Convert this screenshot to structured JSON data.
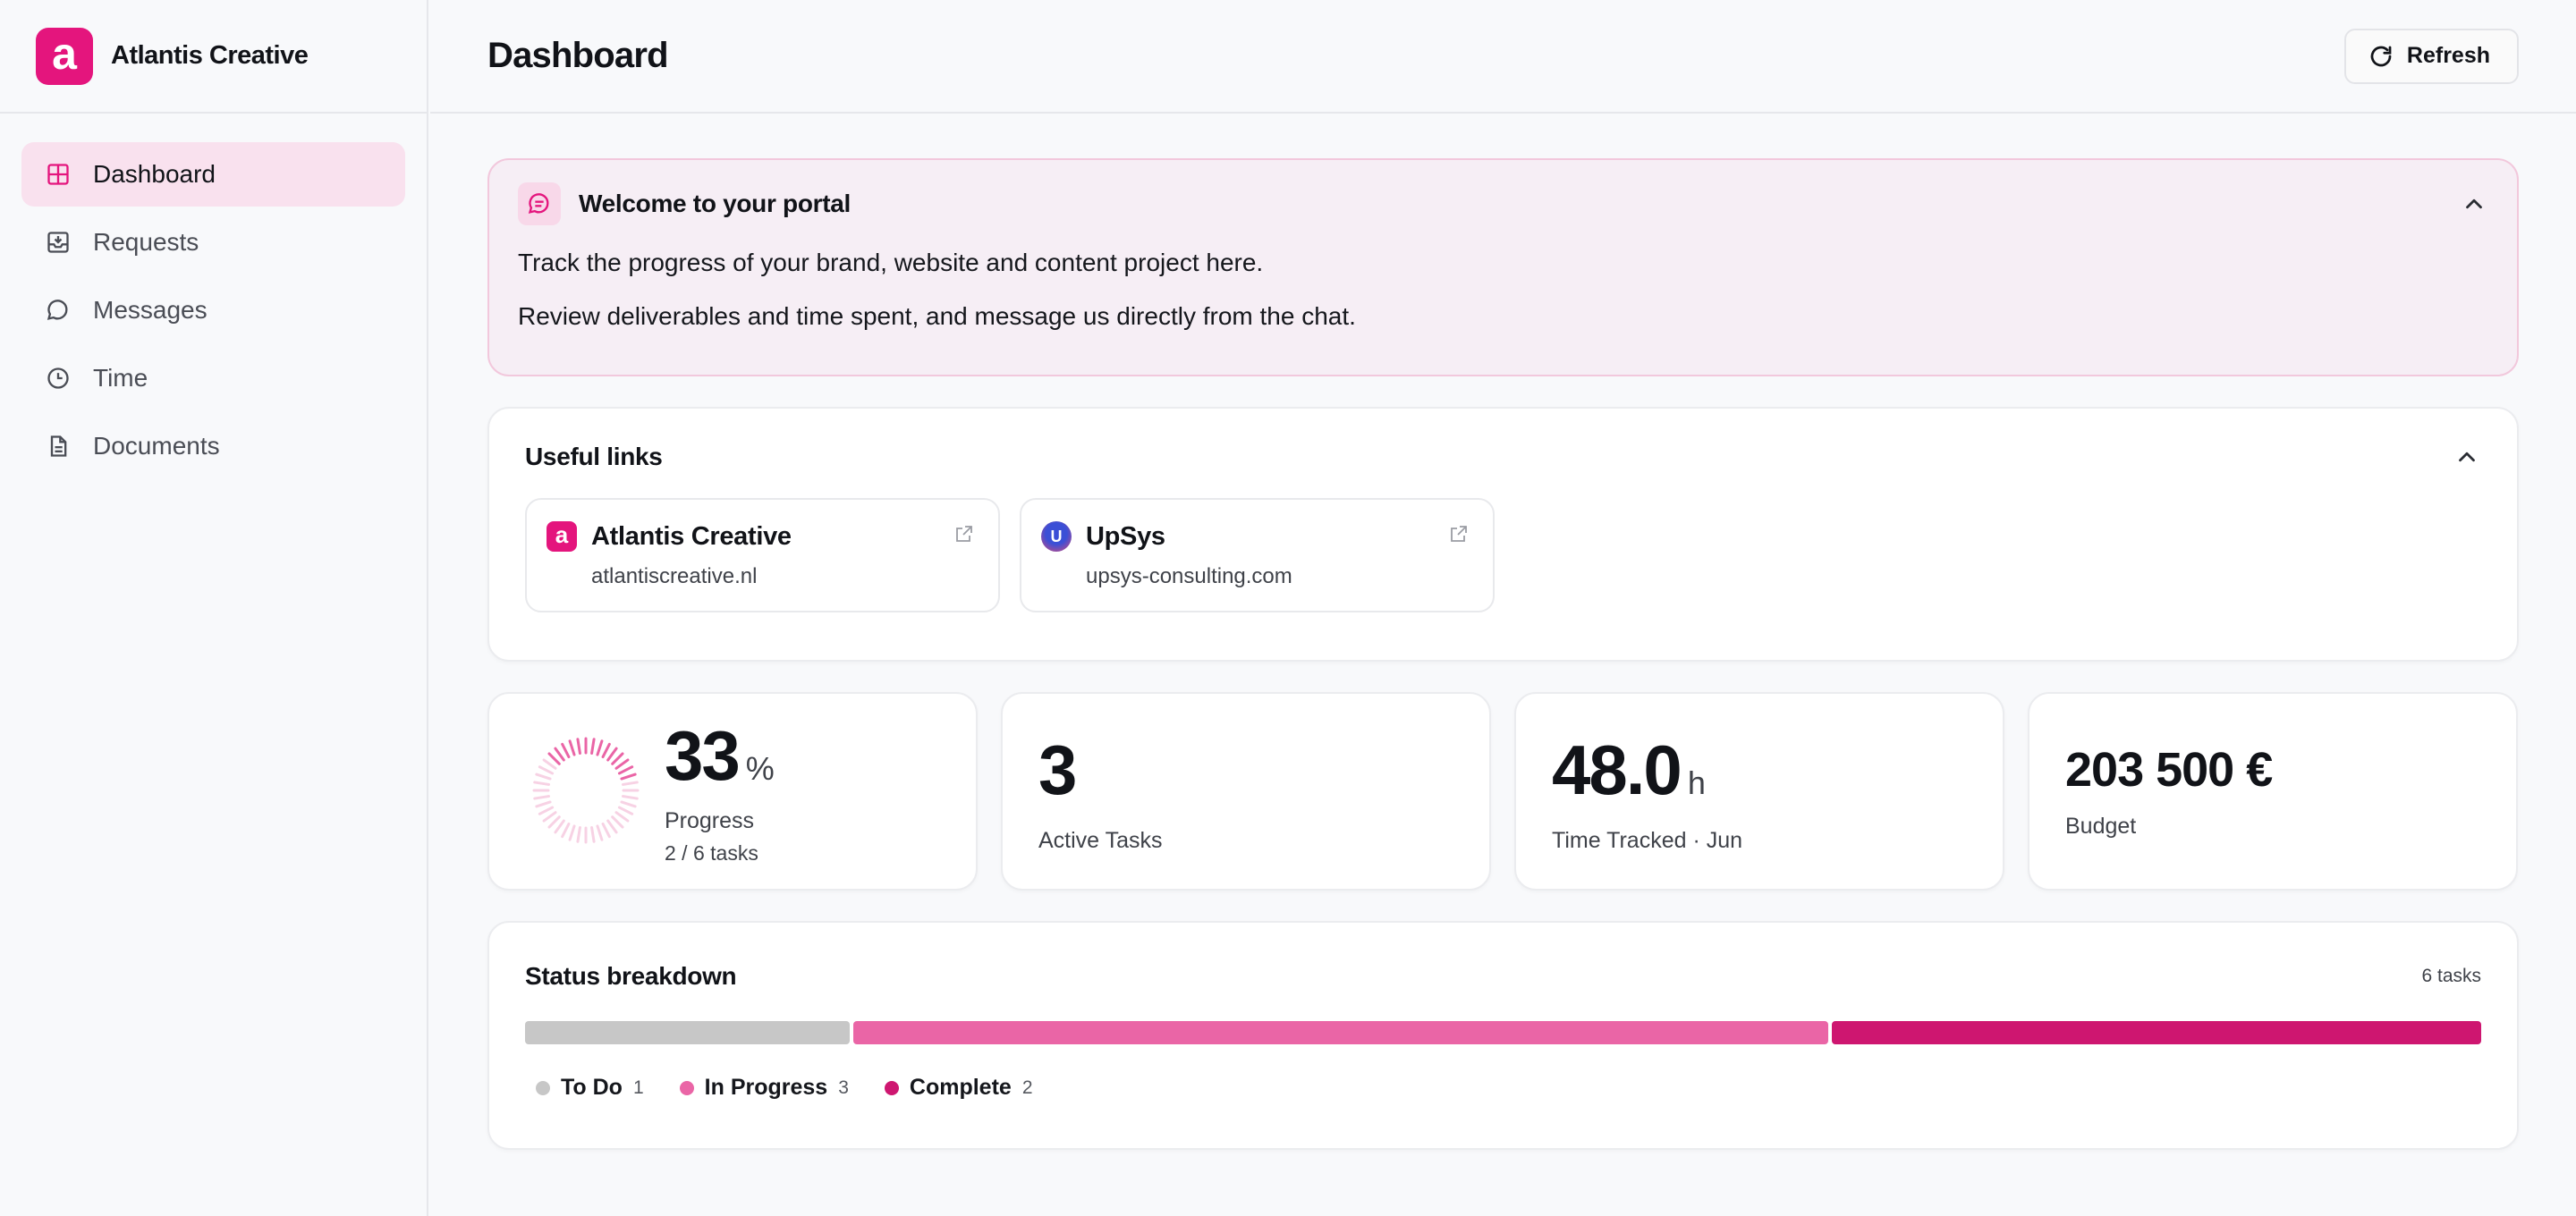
{
  "brand": {
    "name": "Atlantis Creative",
    "logo_letter": "a",
    "color": "#e4157d"
  },
  "nav": {
    "items": [
      {
        "label": "Dashboard",
        "icon": "grid-icon",
        "active": true
      },
      {
        "label": "Requests",
        "icon": "inbox-download-icon",
        "active": false
      },
      {
        "label": "Messages",
        "icon": "chat-bubble-icon",
        "active": false
      },
      {
        "label": "Time",
        "icon": "clock-icon",
        "active": false
      },
      {
        "label": "Documents",
        "icon": "document-icon",
        "active": false
      }
    ]
  },
  "header": {
    "title": "Dashboard",
    "refresh_label": "Refresh"
  },
  "welcome": {
    "title": "Welcome to your portal",
    "line1": "Track the progress of your brand, website and content project here.",
    "line2": "Review deliverables and time spent, and message us directly from the chat."
  },
  "useful_links": {
    "title": "Useful links",
    "links": [
      {
        "name": "Atlantis Creative",
        "url": "atlantiscreative.nl",
        "favicon": "a"
      },
      {
        "name": "UpSys",
        "url": "upsys-consulting.com",
        "favicon": "U"
      }
    ]
  },
  "stats": {
    "progress": {
      "value": "33",
      "unit": "%",
      "label": "Progress",
      "sub": "2 / 6 tasks",
      "fraction": 0.33
    },
    "active_tasks": {
      "value": "3",
      "label": "Active Tasks"
    },
    "time_tracked": {
      "value": "48.0",
      "unit": "h",
      "label": "Time Tracked · Jun"
    },
    "budget": {
      "value": "203 500 €",
      "label": "Budget"
    }
  },
  "status_breakdown": {
    "title": "Status breakdown",
    "count_label": "6 tasks",
    "segments": [
      {
        "label": "To Do",
        "count": "1",
        "value": 1,
        "color": "#c7c7c7"
      },
      {
        "label": "In Progress",
        "count": "3",
        "value": 3,
        "color": "#ea65a6"
      },
      {
        "label": "Complete",
        "count": "2",
        "value": 2,
        "color": "#ce1670"
      }
    ]
  }
}
